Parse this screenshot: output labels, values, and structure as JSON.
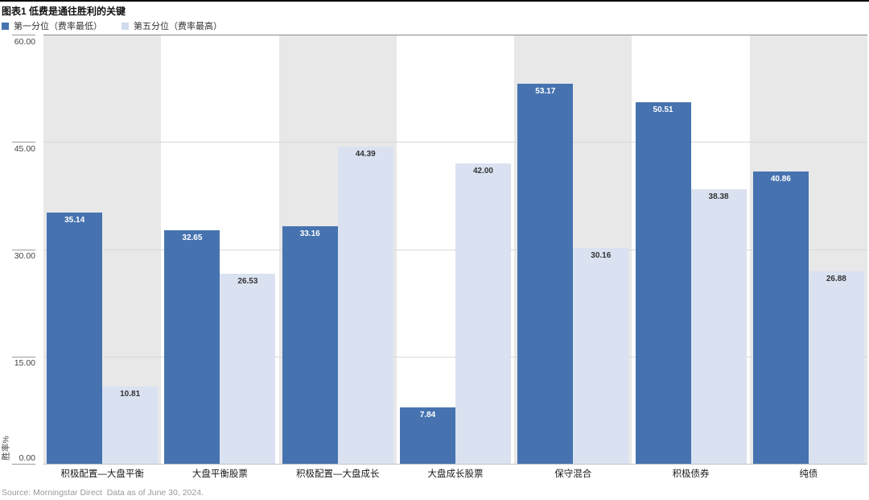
{
  "title": "图表1 低费是通往胜利的关键",
  "legend": [
    {
      "label": "第一分位（费率最低）",
      "color": "#4673b0"
    },
    {
      "label": "第五分位（费率最高）",
      "color": "#cfdbee"
    }
  ],
  "source": "Source: Morningstar Direct  Data as of June 30, 2024.",
  "chart_data": {
    "type": "bar",
    "categories": [
      "积极配置—大盘平衡",
      "大盘平衡股票",
      "积极配置—大盘成长",
      "大盘成长股票",
      "保守混合",
      "积极债券",
      "纯债"
    ],
    "series": [
      {
        "name": "第一分位（费率最低）",
        "values": [
          35.14,
          32.65,
          33.16,
          7.84,
          53.17,
          50.51,
          40.86
        ]
      },
      {
        "name": "第五分位（费率最高）",
        "values": [
          10.81,
          26.53,
          44.39,
          42.0,
          30.16,
          38.38,
          26.88
        ]
      }
    ],
    "title": "图表1 低费是通往胜利的关键",
    "xlabel": "",
    "ylabel": "胜率%",
    "ylim": [
      0,
      60
    ],
    "yticks": [
      60.0,
      45.0,
      30.0,
      15.0,
      0.0
    ],
    "ytick_labels": [
      "60.00",
      "45.00",
      "30.00",
      "15.00",
      "0.00"
    ],
    "grid": true,
    "legend_position": "top-left",
    "value_label_decimals": 2,
    "alternating_bands": true
  },
  "colors": {
    "series1": "#4673b0",
    "series2": "#dae2f1",
    "series1_value_label": "#ffffff",
    "series2_value_label": "#333333",
    "band_gray": "#e8e8e8",
    "band_white": "#ffffff",
    "gridline": "#d8d8d8",
    "plot_top_border": "#8a8a8a",
    "baseline": "#c4c4c4",
    "top_rule": "#000000",
    "source_text": "#999999"
  }
}
